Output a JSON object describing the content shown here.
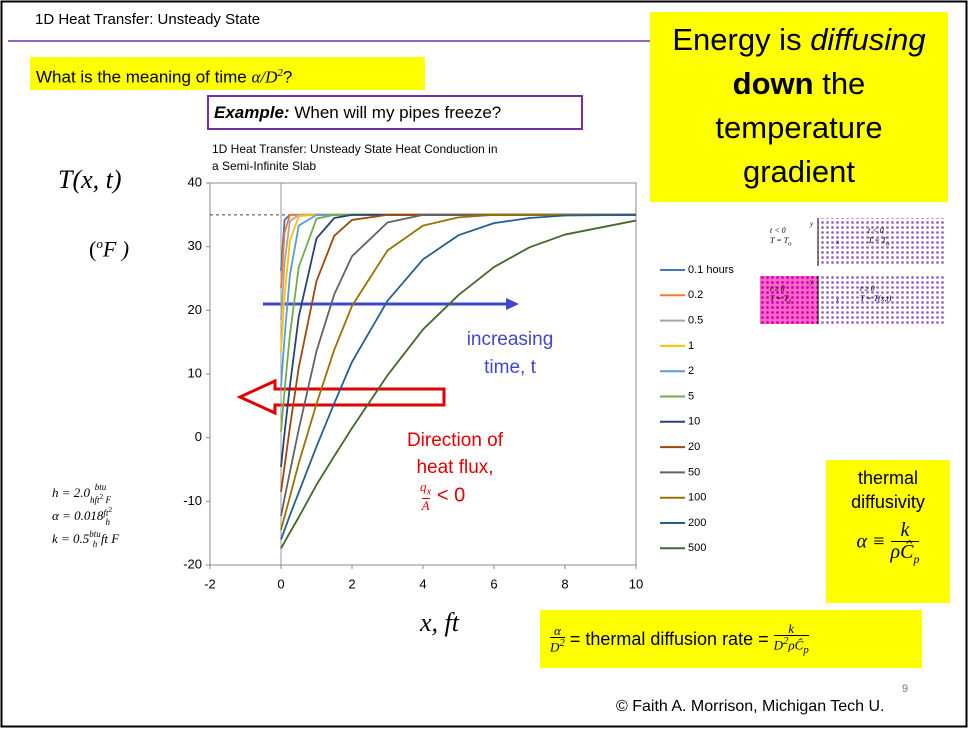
{
  "slide": {
    "header": "1D Heat Transfer: Unsteady State",
    "question": [
      "What is the meaning of time ",
      "α/D",
      "2",
      "?"
    ],
    "example": [
      "Example:",
      " When will my pipes freeze?"
    ],
    "callout": [
      "Energy is ",
      "diffusing",
      "down",
      " the",
      "temperature",
      "gradient"
    ],
    "parameters": [
      [
        "h = 2.0",
        "btu",
        "hft",
        "2",
        " F"
      ],
      [
        "α = 0.018",
        "ft",
        "2",
        "h"
      ],
      [
        "k = 0.5",
        "btu",
        "h",
        "ft F"
      ]
    ],
    "diffusivity_box": [
      "thermal",
      "diffusivity",
      "α ≡",
      "k",
      "ρĈ",
      "p"
    ],
    "diffusion_rate": [
      "α",
      "D",
      "2",
      " = thermal diffusion rate = ",
      "k",
      "D",
      "2",
      "ρĈ",
      "p"
    ],
    "page_number": "9",
    "copyright": "© Faith A. Morrison, Michigan Tech U."
  },
  "schematic": {
    "before": [
      "t < 0",
      "T = T",
      "o",
      "t < 0",
      "T = T",
      "o"
    ],
    "after": [
      "t ≥ 0",
      "T = T",
      "1",
      "t ≥ 0",
      "T = T(x,t)"
    ],
    "axes": [
      "y",
      "x"
    ]
  },
  "chart_data": {
    "type": "line",
    "title": [
      "1D Heat Transfer:  Unsteady State Heat Conduction in",
      "a Semi-Infinite Slab"
    ],
    "y_label": [
      "T(x, t)",
      "(",
      "o",
      "F )"
    ],
    "x_label": "x, ft",
    "x": [
      0,
      0.1,
      0.25,
      0.5,
      1,
      1.5,
      2,
      3,
      4,
      5,
      6,
      7,
      8,
      10
    ],
    "series": [
      {
        "name": "0.1 hours",
        "color": "#4472c4",
        "values": [
          26.2,
          34.2,
          35,
          35,
          35,
          35,
          35,
          35,
          35,
          35,
          35,
          35,
          35,
          35
        ]
      },
      {
        "name": "0.2",
        "color": "#ed7d31",
        "values": [
          23.5,
          32.2,
          35,
          35,
          35,
          35,
          35,
          35,
          35,
          35,
          35,
          35,
          35,
          35
        ]
      },
      {
        "name": "0.5",
        "color": "#a5a5a5",
        "values": [
          18.5,
          27.5,
          34,
          35,
          35,
          35,
          35,
          35,
          35,
          35,
          35,
          35,
          35,
          35
        ]
      },
      {
        "name": "1",
        "color": "#ffc000",
        "values": [
          13.6,
          22.2,
          30.9,
          34.8,
          35,
          35,
          35,
          35,
          35,
          35,
          35,
          35,
          35,
          35
        ]
      },
      {
        "name": "2",
        "color": "#5b9bd5",
        "values": [
          8,
          15.7,
          25.5,
          33.3,
          35,
          35,
          35,
          35,
          35,
          35,
          35,
          35,
          35,
          35
        ]
      },
      {
        "name": "5",
        "color": "#70ad47",
        "values": [
          0.9,
          7.4,
          16.1,
          26.8,
          34.4,
          35,
          35,
          35,
          35,
          35,
          35,
          35,
          35,
          35
        ]
      },
      {
        "name": "10",
        "color": "#264478",
        "values": [
          -4.6,
          0.7,
          8.1,
          19,
          31.3,
          34.5,
          35,
          35,
          35,
          35,
          35,
          35,
          35,
          35
        ]
      },
      {
        "name": "20",
        "color": "#9e480e",
        "values": [
          -8.5,
          -4.5,
          1.6,
          11,
          24.6,
          31.7,
          34.2,
          35,
          35,
          35,
          35,
          35,
          35,
          35
        ]
      },
      {
        "name": "50",
        "color": "#636363",
        "values": [
          -12.3,
          -9.5,
          -5.4,
          1.3,
          13.6,
          22.5,
          28.5,
          33.8,
          35,
          35,
          35,
          35,
          35,
          35
        ]
      },
      {
        "name": "100",
        "color": "#997300",
        "values": [
          -14.5,
          -12.4,
          -9.3,
          -4,
          5.3,
          13.8,
          20.7,
          29.4,
          33.3,
          34.6,
          35,
          35,
          35,
          35
        ]
      },
      {
        "name": "200",
        "color": "#255e91",
        "values": [
          -16,
          -14.5,
          -12.2,
          -8.6,
          -1.4,
          5.4,
          11.9,
          21.5,
          28,
          31.8,
          33.7,
          34.5,
          34.9,
          35
        ]
      },
      {
        "name": "500",
        "color": "#43682b",
        "values": [
          -17.4,
          -16.4,
          -14.9,
          -12.5,
          -7.4,
          -2.9,
          1.5,
          9.8,
          17,
          22.4,
          26.8,
          29.9,
          31.9,
          34.1
        ]
      }
    ],
    "xlim": [
      -2,
      10
    ],
    "xticks": [
      -2,
      0,
      2,
      4,
      6,
      8,
      10
    ],
    "ylim": [
      -20,
      40
    ],
    "yticks": [
      -20,
      -10,
      0,
      10,
      20,
      30,
      40
    ],
    "reference_line": 35,
    "annotations": {
      "time": [
        "increasing",
        "time, t"
      ],
      "flux": [
        "Direction of",
        "heat flux,",
        "q",
        "x",
        "A",
        " < 0"
      ]
    }
  }
}
